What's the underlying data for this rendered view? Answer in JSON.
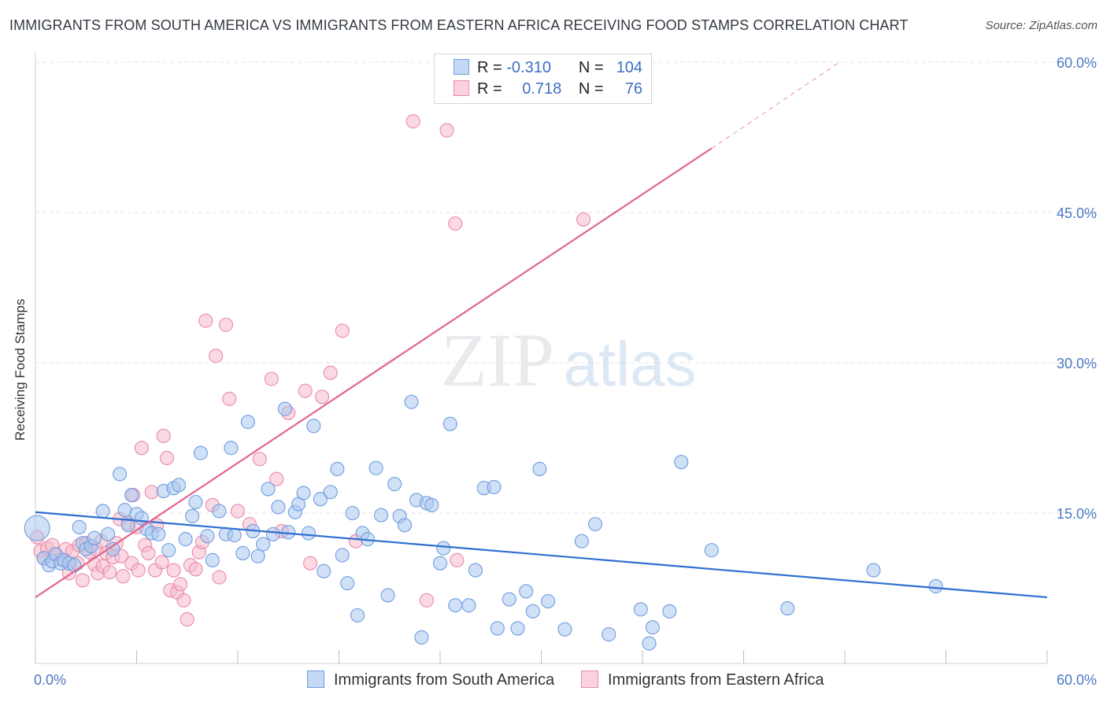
{
  "title": "IMMIGRANTS FROM SOUTH AMERICA VS IMMIGRANTS FROM EASTERN AFRICA RECEIVING FOOD STAMPS CORRELATION CHART",
  "source": "Source: ZipAtlas.com",
  "watermark": {
    "zip": "ZIP",
    "atlas": "atlas"
  },
  "legend": {
    "r_label": "R =",
    "n_label": "N =",
    "rows": [
      {
        "r": "-0.310",
        "n": "104"
      },
      {
        "r": "0.718",
        "n": "76"
      }
    ]
  },
  "colors": {
    "blue_fill": "#a9c6ef",
    "blue_stroke": "#6f9de0",
    "blue_line": "#2f6fcf",
    "pink_fill": "#f6b9cc",
    "pink_stroke": "#ea8aa8",
    "pink_line": "#e0668e",
    "grid": "#e3e3e3",
    "tick_text": "#4a78c2"
  },
  "chart_data": {
    "type": "scatter",
    "title": "IMMIGRANTS FROM SOUTH AMERICA VS IMMIGRANTS FROM EASTERN AFRICA RECEIVING FOOD STAMPS CORRELATION CHART",
    "xlabel": "",
    "ylabel": "Receiving Food Stamps",
    "xlim": [
      0,
      60
    ],
    "ylim": [
      0,
      60
    ],
    "x_tick_labels": [
      "0.0%",
      "60.0%"
    ],
    "y_ticks": [
      15,
      30,
      45,
      60
    ],
    "y_tick_labels": [
      "15.0%",
      "30.0%",
      "45.0%",
      "60.0%"
    ],
    "grid": true,
    "legend_position": "top-center",
    "series": [
      {
        "name": "Immigrants from South America",
        "r": -0.31,
        "n": 104,
        "trend": {
          "x": [
            0,
            60
          ],
          "y": [
            15.1,
            6.6
          ]
        },
        "points": [
          [
            0.1,
            13.5
          ],
          [
            0.5,
            10.5
          ],
          [
            0.8,
            9.8
          ],
          [
            1.0,
            10.2
          ],
          [
            1.2,
            10.9
          ],
          [
            1.5,
            10.0
          ],
          [
            1.7,
            10.3
          ],
          [
            2.0,
            10.0
          ],
          [
            2.3,
            9.8
          ],
          [
            2.6,
            13.6
          ],
          [
            2.8,
            12.0
          ],
          [
            3.0,
            11.4
          ],
          [
            3.3,
            11.7
          ],
          [
            3.5,
            12.5
          ],
          [
            4.0,
            15.2
          ],
          [
            4.3,
            12.9
          ],
          [
            4.6,
            11.4
          ],
          [
            5.0,
            18.9
          ],
          [
            5.3,
            15.3
          ],
          [
            5.5,
            13.8
          ],
          [
            5.7,
            16.8
          ],
          [
            6.0,
            14.9
          ],
          [
            6.3,
            14.5
          ],
          [
            6.6,
            13.4
          ],
          [
            6.9,
            13.0
          ],
          [
            7.3,
            12.9
          ],
          [
            7.6,
            17.2
          ],
          [
            7.9,
            11.3
          ],
          [
            8.2,
            17.5
          ],
          [
            8.5,
            17.8
          ],
          [
            8.9,
            12.4
          ],
          [
            9.3,
            14.7
          ],
          [
            9.5,
            16.1
          ],
          [
            9.8,
            21.0
          ],
          [
            10.2,
            12.7
          ],
          [
            10.5,
            10.3
          ],
          [
            10.9,
            15.2
          ],
          [
            11.3,
            12.9
          ],
          [
            11.6,
            21.5
          ],
          [
            11.8,
            12.8
          ],
          [
            12.3,
            11.0
          ],
          [
            12.6,
            24.1
          ],
          [
            12.9,
            13.2
          ],
          [
            13.2,
            10.7
          ],
          [
            13.5,
            11.9
          ],
          [
            13.8,
            17.4
          ],
          [
            14.1,
            12.9
          ],
          [
            14.4,
            15.6
          ],
          [
            14.8,
            25.4
          ],
          [
            15.0,
            13.1
          ],
          [
            15.4,
            15.1
          ],
          [
            15.6,
            15.9
          ],
          [
            15.9,
            17.0
          ],
          [
            16.2,
            13.0
          ],
          [
            16.5,
            23.7
          ],
          [
            16.9,
            16.4
          ],
          [
            17.1,
            9.2
          ],
          [
            17.5,
            17.1
          ],
          [
            17.9,
            19.4
          ],
          [
            18.2,
            10.8
          ],
          [
            18.5,
            8.0
          ],
          [
            18.8,
            15.0
          ],
          [
            19.1,
            4.8
          ],
          [
            19.4,
            13.0
          ],
          [
            19.7,
            12.4
          ],
          [
            20.2,
            19.5
          ],
          [
            20.5,
            14.8
          ],
          [
            20.9,
            6.8
          ],
          [
            21.3,
            17.9
          ],
          [
            21.6,
            14.7
          ],
          [
            21.9,
            13.8
          ],
          [
            22.3,
            26.1
          ],
          [
            22.6,
            16.3
          ],
          [
            22.9,
            2.6
          ],
          [
            23.2,
            16.0
          ],
          [
            23.5,
            15.8
          ],
          [
            24.0,
            10.0
          ],
          [
            24.2,
            11.5
          ],
          [
            24.6,
            23.9
          ],
          [
            24.9,
            5.8
          ],
          [
            25.7,
            5.8
          ],
          [
            26.1,
            9.3
          ],
          [
            26.6,
            17.5
          ],
          [
            27.2,
            17.6
          ],
          [
            27.4,
            3.5
          ],
          [
            28.1,
            6.4
          ],
          [
            28.6,
            3.5
          ],
          [
            29.1,
            7.2
          ],
          [
            29.5,
            5.2
          ],
          [
            29.9,
            19.4
          ],
          [
            30.4,
            6.2
          ],
          [
            31.4,
            3.4
          ],
          [
            32.4,
            12.2
          ],
          [
            33.2,
            13.9
          ],
          [
            34.0,
            2.9
          ],
          [
            35.9,
            5.4
          ],
          [
            36.4,
            2.0
          ],
          [
            36.6,
            3.6
          ],
          [
            37.6,
            5.2
          ],
          [
            38.3,
            20.1
          ],
          [
            40.1,
            11.3
          ],
          [
            44.6,
            5.5
          ],
          [
            49.7,
            9.3
          ],
          [
            53.4,
            7.7
          ]
        ]
      },
      {
        "name": "Immigrants from Eastern Africa",
        "r": 0.718,
        "n": 76,
        "trend": {
          "x": [
            0,
            40.1
          ],
          "y": [
            6.6,
            51.4
          ]
        },
        "trend_extension": {
          "x": [
            40.1,
            47.6
          ],
          "y": [
            51.4,
            59.9
          ]
        },
        "points": [
          [
            0.1,
            12.6
          ],
          [
            0.3,
            11.2
          ],
          [
            0.5,
            10.5
          ],
          [
            0.7,
            11.5
          ],
          [
            1.0,
            11.8
          ],
          [
            1.2,
            10.9
          ],
          [
            1.5,
            10.4
          ],
          [
            1.8,
            11.4
          ],
          [
            2.0,
            9.0
          ],
          [
            2.2,
            11.2
          ],
          [
            2.5,
            10.0
          ],
          [
            2.6,
            11.8
          ],
          [
            2.8,
            8.3
          ],
          [
            3.0,
            12.0
          ],
          [
            3.2,
            11.1
          ],
          [
            3.5,
            9.9
          ],
          [
            3.6,
            11.4
          ],
          [
            3.7,
            9.0
          ],
          [
            3.9,
            12.2
          ],
          [
            4.0,
            9.7
          ],
          [
            4.2,
            11.0
          ],
          [
            4.4,
            9.1
          ],
          [
            4.6,
            10.6
          ],
          [
            4.8,
            12.0
          ],
          [
            5.0,
            14.4
          ],
          [
            5.1,
            10.7
          ],
          [
            5.2,
            8.7
          ],
          [
            5.5,
            14.0
          ],
          [
            5.7,
            10.0
          ],
          [
            5.8,
            16.8
          ],
          [
            6.0,
            13.6
          ],
          [
            6.1,
            9.3
          ],
          [
            6.3,
            21.5
          ],
          [
            6.5,
            11.8
          ],
          [
            6.7,
            11.0
          ],
          [
            6.9,
            17.1
          ],
          [
            7.1,
            9.3
          ],
          [
            7.2,
            13.8
          ],
          [
            7.5,
            10.1
          ],
          [
            7.6,
            22.7
          ],
          [
            7.8,
            20.5
          ],
          [
            8.0,
            7.3
          ],
          [
            8.2,
            9.3
          ],
          [
            8.4,
            7.1
          ],
          [
            8.6,
            7.9
          ],
          [
            8.8,
            6.3
          ],
          [
            9.0,
            4.4
          ],
          [
            9.2,
            9.8
          ],
          [
            9.5,
            9.4
          ],
          [
            9.7,
            11.1
          ],
          [
            9.9,
            12.1
          ],
          [
            10.1,
            34.2
          ],
          [
            10.5,
            15.8
          ],
          [
            10.7,
            30.7
          ],
          [
            10.9,
            8.6
          ],
          [
            11.3,
            33.8
          ],
          [
            11.5,
            26.4
          ],
          [
            12.7,
            13.9
          ],
          [
            13.3,
            20.4
          ],
          [
            14.0,
            28.4
          ],
          [
            14.3,
            18.4
          ],
          [
            14.6,
            13.2
          ],
          [
            15.0,
            25.0
          ],
          [
            16.0,
            27.2
          ],
          [
            16.3,
            10.0
          ],
          [
            17.0,
            26.6
          ],
          [
            17.5,
            29.0
          ],
          [
            18.2,
            33.2
          ],
          [
            19.0,
            12.2
          ],
          [
            22.4,
            54.1
          ],
          [
            23.2,
            6.3
          ],
          [
            24.9,
            43.9
          ],
          [
            24.4,
            53.2
          ],
          [
            25.0,
            10.3
          ],
          [
            32.5,
            44.3
          ],
          [
            12.0,
            15.2
          ]
        ]
      }
    ]
  },
  "bottom_legend": {
    "series_a": "Immigrants from South America",
    "series_b": "Immigrants from Eastern Africa"
  }
}
